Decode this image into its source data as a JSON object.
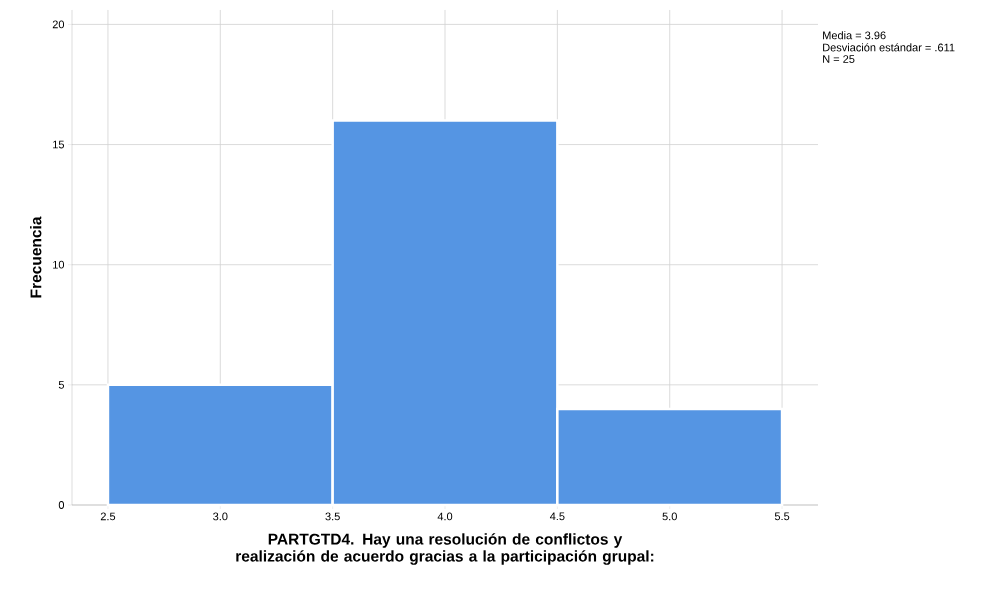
{
  "chart_data": {
    "type": "histogram",
    "xlabel": "PARTGTD4. Hay una resolución de conflictos y realización de acuerdo gracias a la participación grupal:",
    "ylabel": "Frecuencia",
    "bins": [
      2.5,
      3.5,
      4.5,
      5.5
    ],
    "values": [
      5,
      16,
      4
    ],
    "color": "#5595e3",
    "xlim": [
      2.34,
      5.66
    ],
    "ylim": [
      0,
      20.6
    ],
    "xticks": [
      {
        "value": 2.5,
        "label": "2.5"
      },
      {
        "value": 3.0,
        "label": "3.0"
      },
      {
        "value": 3.5,
        "label": "3.5"
      },
      {
        "value": 4.0,
        "label": "4.0"
      },
      {
        "value": 4.5,
        "label": "4.5"
      },
      {
        "value": 5.0,
        "label": "5.0"
      },
      {
        "value": 5.5,
        "label": "5.5"
      }
    ],
    "yticks": [
      0,
      5,
      10,
      15,
      20
    ],
    "grid": true,
    "annotations": [
      "Media = 3.96",
      "Desviación estándar = .611",
      "N = 25"
    ]
  }
}
